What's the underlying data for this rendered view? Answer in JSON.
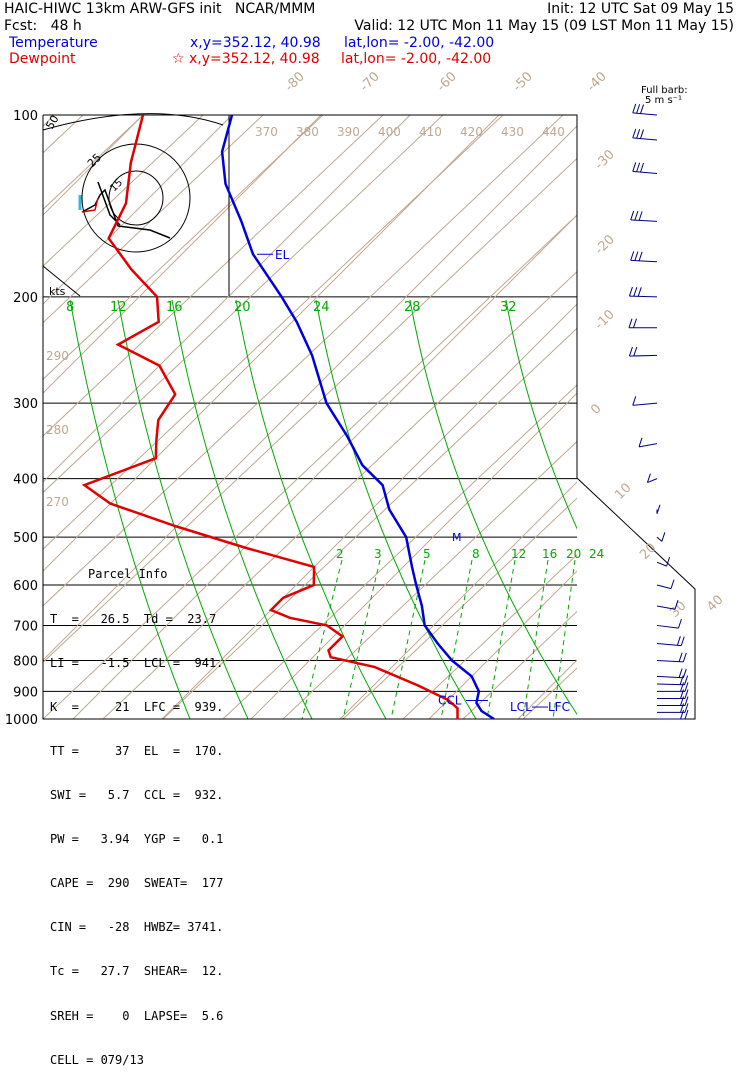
{
  "header": {
    "title": "HAIC-HIWC 13km ARW-GFS init   NCAR/MMM",
    "init": "Init: 12 UTC Sat 09 May 15",
    "fcst": "Fcst:   48 h",
    "valid": "Valid: 12 UTC Mon 11 May 15 (09 LST Mon 11 May 15)",
    "temp_label": "Temperature",
    "temp_loc": "x,y=352.12, 40.98",
    "temp_latlon": "lat,lon= -2.00, -42.00",
    "dew_label": "Dewpoint",
    "dew_loc": "☆ x,y=352.12, 40.98",
    "dew_latlon": "lat,lon= -2.00, -42.00",
    "barb_title_1": "Full barb:",
    "barb_title_2": "5 m s⁻¹"
  },
  "colors": {
    "temperature": "#0000dd",
    "dewpoint": "#e00000",
    "isotherm": "#c0a890",
    "mixing_ratio": "#00aa00",
    "moist_adiabat": "#00aa00",
    "isobar": "#000000",
    "wind": "#000080"
  },
  "parcel": {
    "title": "Parcel Info",
    "rows": [
      "T  =   26.5  Td =  23.7",
      "LI =   -1.5  LCL =  941.",
      "K  =     21  LFC =  939.",
      "TT =     37  EL  =  170.",
      "SWI =   5.7  CCL =  932.",
      "PW =   3.94  YGP =   0.1",
      "CAPE =  290  SWEAT=  177",
      "CIN =   -28  HWBZ= 3741.",
      "Tc =   27.7  SHEAR=  12.",
      "SREH =    0  LAPSE=  5.6",
      "CELL = 079/13"
    ]
  },
  "annotations": {
    "el": "EL",
    "ccl": "CCL",
    "lcl": "LCL",
    "lfc": "LFC",
    "melt": "M",
    "hodo_unit": "kts",
    "hodo_rings": [
      "25",
      "50"
    ],
    "hodo_center": "15"
  },
  "chart_data": {
    "type": "line",
    "title": "",
    "xlabel": "",
    "ylabel": "",
    "pressure_ticks": [
      "100",
      "200",
      "300",
      "400",
      "500",
      "600",
      "700",
      "800",
      "900",
      "1000"
    ],
    "isotherm_labels": [
      "-80",
      "-70",
      "-60",
      "-50",
      "-40",
      "-30",
      "-20",
      "-10",
      "0",
      "10",
      "20",
      "30",
      "40"
    ],
    "theta_labels": [
      "370",
      "380",
      "390",
      "400",
      "410",
      "420",
      "430",
      "440"
    ],
    "theta_left_labels": [
      "290",
      "280",
      "270"
    ],
    "mixing_upper_labels": [
      "8",
      "12",
      "16",
      "20",
      "24",
      "28",
      "32"
    ],
    "mixing_lower_labels": [
      "2",
      "3",
      "5",
      "8",
      "12",
      "16",
      "20",
      "24"
    ],
    "series": [
      {
        "name": "Temperature",
        "pressure": [
          1000,
          970,
          940,
          900,
          850,
          800,
          750,
          700,
          650,
          600,
          560,
          500,
          450,
          410,
          380,
          340,
          300,
          250,
          220,
          200,
          170,
          150,
          130,
          115,
          100
        ],
        "values": [
          27.3,
          25,
          23.5,
          22.5,
          20,
          16,
          12.5,
          9,
          6.5,
          3.5,
          1,
          -3,
          -8,
          -11.5,
          -16,
          -21,
          -27,
          -34,
          -39.5,
          -44,
          -52,
          -57,
          -63,
          -67,
          -70
        ]
      },
      {
        "name": "Dewpoint",
        "pressure": [
          1000,
          960,
          930,
          880,
          820,
          790,
          770,
          730,
          700,
          680,
          660,
          630,
          600,
          560,
          520,
          480,
          440,
          410,
          370,
          345,
          320,
          290,
          260,
          240,
          220,
          200,
          180,
          160,
          140,
          120,
          100
        ],
        "values": [
          23.2,
          22,
          20,
          15,
          8,
          2,
          1,
          1,
          -2,
          -7,
          -10,
          -10,
          -8,
          -10,
          -20,
          -30,
          -40,
          -45,
          -40,
          -42,
          -44,
          -45,
          -50,
          -57,
          -55,
          -58,
          -64,
          -70,
          -72,
          -76,
          -80
        ]
      }
    ],
    "wind_barbs": {
      "pressure": [
        1000,
        975,
        950,
        925,
        900,
        875,
        850,
        800,
        750,
        700,
        650,
        600,
        550,
        500,
        450,
        400,
        350,
        300,
        250,
        225,
        200,
        175,
        150,
        125,
        110,
        100
      ],
      "direction_deg": [
        90,
        90,
        90,
        90,
        90,
        100,
        110,
        110,
        120,
        130,
        140,
        150,
        160,
        170,
        180,
        200,
        220,
        240,
        260,
        270,
        280,
        290,
        290,
        300,
        300,
        300
      ],
      "speed_ms": [
        10,
        10,
        10,
        10,
        10,
        10,
        10,
        8,
        8,
        6,
        6,
        5,
        5,
        5,
        5,
        5,
        5,
        5,
        10,
        10,
        15,
        15,
        15,
        15,
        15,
        15
      ]
    },
    "ylim": [
      1000,
      100
    ],
    "xlim": [
      -40,
      40
    ],
    "log_y": true,
    "grid": true
  }
}
